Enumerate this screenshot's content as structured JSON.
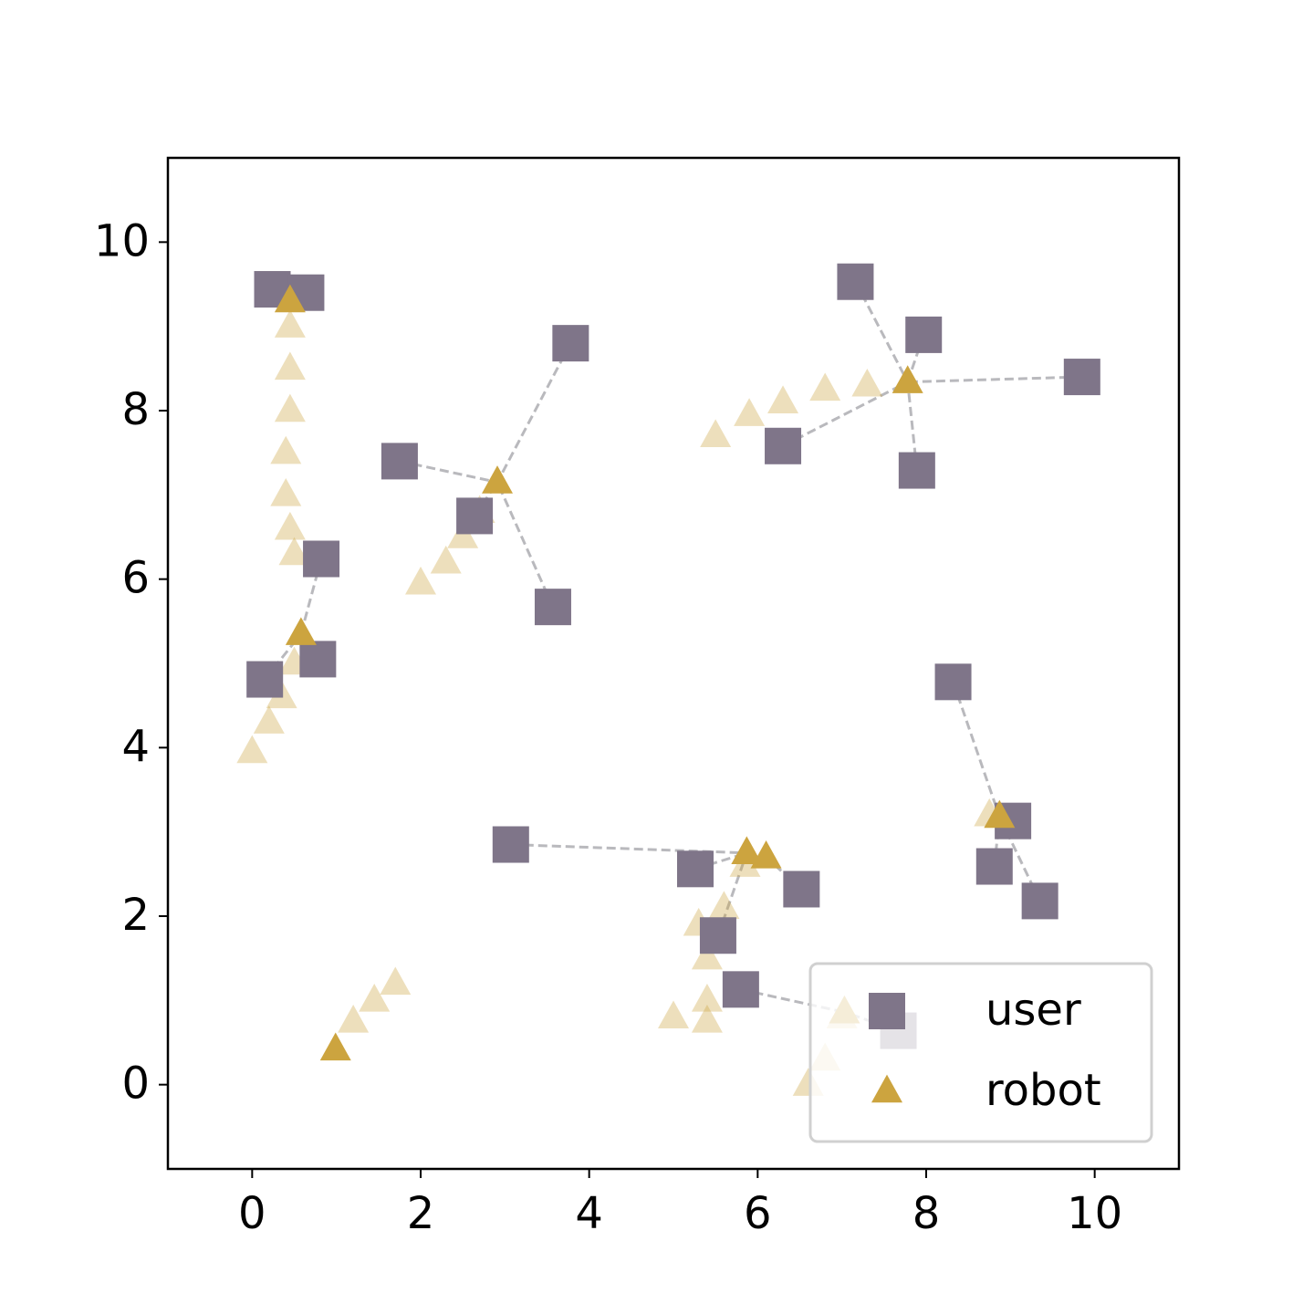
{
  "chart_data": {
    "type": "scatter",
    "xlim": [
      -1,
      11
    ],
    "ylim": [
      -1,
      11
    ],
    "xticks": [
      0,
      2,
      4,
      6,
      8,
      10
    ],
    "yticks": [
      0,
      2,
      4,
      6,
      8,
      10
    ],
    "legend": "lower right",
    "series": [
      {
        "name": "user",
        "color": "#7f7589",
        "marker": "square",
        "x": [
          0.24,
          0.64,
          3.78,
          1.75,
          2.64,
          0.82,
          3.57,
          0.15,
          0.78,
          7.16,
          7.97,
          9.85,
          6.3,
          7.89,
          8.32,
          9.03,
          8.81,
          9.35,
          3.07,
          5.26,
          6.52,
          5.53,
          5.8,
          7.67
        ],
        "y": [
          9.44,
          9.4,
          8.8,
          7.4,
          6.75,
          6.24,
          5.67,
          4.81,
          5.05,
          9.53,
          8.9,
          8.4,
          7.58,
          7.29,
          4.78,
          3.13,
          2.59,
          2.18,
          2.85,
          2.56,
          2.32,
          1.77,
          1.13,
          0.64
        ]
      },
      {
        "name": "robot",
        "color": "#cca43f",
        "marker": "triangle",
        "x": [
          0.45,
          2.91,
          0.58,
          7.78,
          8.87,
          5.87,
          6.1,
          0.99,
          7.03
        ],
        "y": [
          9.3,
          7.15,
          5.35,
          8.34,
          3.18,
          2.75,
          2.7,
          0.42,
          0.86
        ],
        "trail": [
          {
            "x": [
              0.45,
              0.45,
              0.45,
              0.4,
              0.4,
              0.45,
              0.5
            ],
            "y": [
              9.0,
              8.5,
              8.0,
              7.5,
              7.0,
              6.6,
              6.3
            ]
          },
          {
            "x": [
              2.7,
              2.5,
              2.3,
              2.0
            ],
            "y": [
              6.8,
              6.5,
              6.2,
              5.95
            ]
          },
          {
            "x": [
              0.5,
              0.35,
              0.2,
              0.0
            ],
            "y": [
              5.0,
              4.6,
              4.3,
              3.95
            ]
          },
          {
            "x": [
              7.3,
              6.8,
              6.3,
              5.9,
              5.5
            ],
            "y": [
              8.3,
              8.25,
              8.1,
              7.95,
              7.7
            ]
          },
          {
            "x": [
              8.75
            ],
            "y": [
              3.2
            ]
          },
          {
            "x": [
              5.85,
              5.6,
              5.3,
              5.4,
              5.4,
              5.4,
              5.0
            ],
            "y": [
              2.6,
              2.1,
              1.9,
              1.5,
              1.0,
              0.75,
              0.8
            ]
          },
          {
            "x": [
              1.2,
              1.45,
              1.7
            ],
            "y": [
              0.75,
              1.0,
              1.2
            ]
          },
          {
            "x": [
              7.0,
              6.8,
              6.6
            ],
            "y": [
              0.8,
              0.3,
              0.0
            ]
          }
        ]
      }
    ]
  }
}
